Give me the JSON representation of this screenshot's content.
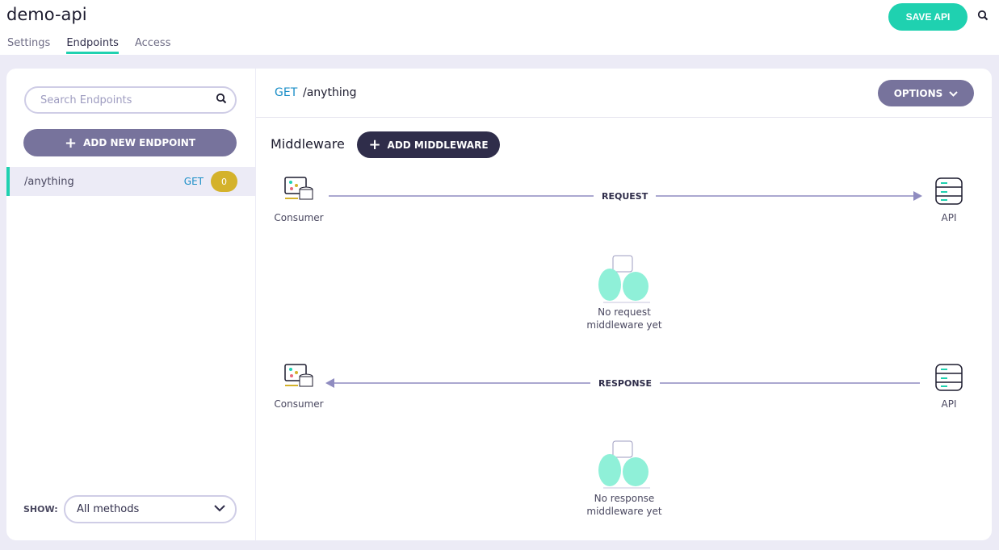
{
  "header": {
    "title": "demo-api",
    "save_label": "SAVE API",
    "tabs": [
      {
        "label": "Settings"
      },
      {
        "label": "Endpoints",
        "active": true
      },
      {
        "label": "Access"
      }
    ]
  },
  "sidebar": {
    "search_placeholder": "Search Endpoints",
    "add_label": "ADD NEW ENDPOINT",
    "endpoints": [
      {
        "path": "/anything",
        "method": "GET",
        "count": "0"
      }
    ],
    "show_label": "SHOW:",
    "show_value": "All methods"
  },
  "main": {
    "method": "GET",
    "path": "/anything",
    "options_label": "OPTIONS",
    "middleware_title": "Middleware",
    "add_middleware_label": "ADD MIDDLEWARE",
    "request": {
      "label": "REQUEST",
      "from": "Consumer",
      "to": "API",
      "empty": [
        "No request",
        "middleware yet"
      ]
    },
    "response": {
      "label": "RESPONSE",
      "from": "API",
      "to": "Consumer",
      "empty": [
        "No response",
        "middleware yet"
      ]
    }
  },
  "colors": {
    "accent": "#1fd1b0",
    "primary": "#77739c",
    "dark": "#2f2d4a",
    "method": "#1a8ec7",
    "badge": "#d4b22b"
  }
}
